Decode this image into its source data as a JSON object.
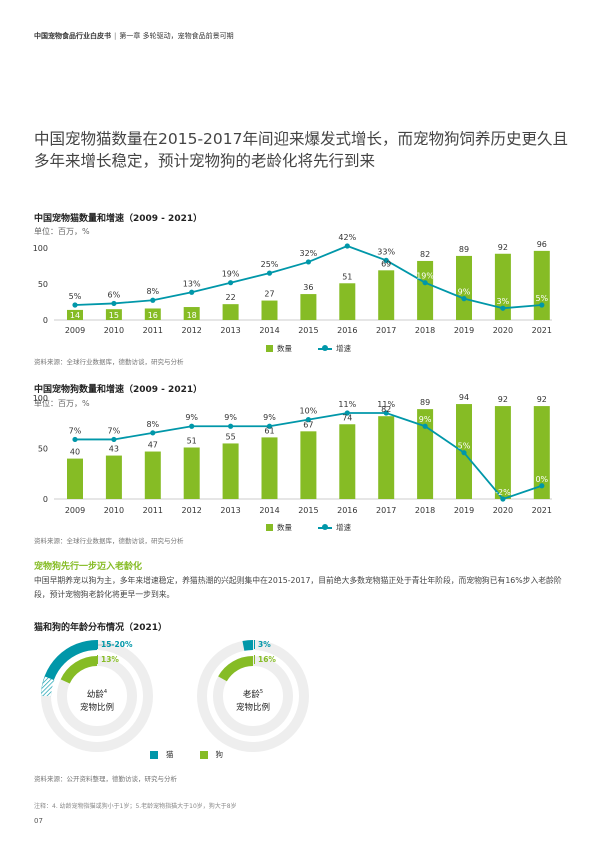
{
  "header": {
    "report": "中国宠物食品行业白皮书",
    "separator": "|",
    "chapter": "第一章 多轮驱动，宠物食品前景可期"
  },
  "headline": "中国宠物猫数量在2015-2017年间迎来爆发式增长，而宠物狗饲养历史更久且多年来增长稳定，预计宠物狗的老龄化将先行到来",
  "legend": {
    "bars": "数量",
    "line": "增速"
  },
  "chart_data": [
    {
      "type": "bar",
      "title": "中国宠物猫数量和增速（2009 - 2021）",
      "unit": "单位：百万，%",
      "categories": [
        "2009",
        "2010",
        "2011",
        "2012",
        "2013",
        "2014",
        "2015",
        "2016",
        "2017",
        "2018",
        "2019",
        "2020",
        "2021"
      ],
      "series": [
        {
          "name": "数量",
          "values": [
            14,
            15,
            16,
            18,
            22,
            27,
            36,
            51,
            69,
            82,
            89,
            92,
            96
          ]
        },
        {
          "name": "增速",
          "values": [
            "5%",
            "6%",
            "8%",
            "13%",
            "19%",
            "25%",
            "32%",
            "42%",
            "33%",
            "19%",
            "9%",
            "3%",
            "5%"
          ],
          "numeric": [
            5,
            6,
            8,
            13,
            19,
            25,
            32,
            42,
            33,
            19,
            9,
            3,
            5
          ]
        }
      ],
      "yticks": [
        "0",
        "50",
        "100"
      ],
      "ylim": [
        0,
        100
      ],
      "growth_range": [
        0,
        42
      ],
      "source": "资料来源：全球行业数据库，德勤访谈，研究与分析"
    },
    {
      "type": "bar",
      "title": "中国宠物狗数量和增速（2009 - 2021）",
      "unit": "单位：百万，%",
      "categories": [
        "2009",
        "2010",
        "2011",
        "2012",
        "2013",
        "2014",
        "2015",
        "2016",
        "2017",
        "2018",
        "2019",
        "2020",
        "2021"
      ],
      "series": [
        {
          "name": "数量",
          "values": [
            40,
            43,
            47,
            51,
            55,
            61,
            67,
            74,
            82,
            89,
            94,
            92,
            92
          ]
        },
        {
          "name": "增速",
          "values": [
            "7%",
            "7%",
            "8%",
            "9%",
            "9%",
            "9%",
            "10%",
            "11%",
            "11%",
            "9%",
            "5%",
            "-2%",
            "0%"
          ],
          "numeric": [
            7,
            7,
            8,
            9,
            9,
            9,
            10,
            11,
            11,
            9,
            5,
            -2,
            0
          ]
        }
      ],
      "yticks": [
        "0",
        "50",
        "100"
      ],
      "ylim": [
        0,
        100
      ],
      "growth_range": [
        -2,
        11
      ],
      "source": "资料来源：全球行业数据库，德勤访谈，研究与分析"
    }
  ],
  "section": {
    "title": "宠物狗先行一步迈入老龄化",
    "body": "中国早期养宠以狗为主，多年来增速稳定，养猫热潮的兴起则集中在2015-2017，目前绝大多数宠物猫正处于青壮年阶段，而宠物狗已有16%步入老龄阶段，预计宠物狗老龄化将更早一步到来。"
  },
  "age_chart": {
    "title": "猫和狗的年龄分布情况（2021）",
    "young": {
      "label_line1": "幼龄",
      "label_sup": "4",
      "label_line2": "宠物比例",
      "cat": "15-20%",
      "dog": "13%",
      "cat_value": 0.175,
      "dog_value": 0.13
    },
    "old": {
      "label_line1": "老龄",
      "label_sup": "5",
      "label_line2": "宠物比例",
      "cat": "3%",
      "dog": "16%",
      "cat_value": 0.03,
      "dog_value": 0.16
    },
    "legend": {
      "cat": "猫",
      "dog": "狗"
    },
    "source": "资料来源：公开资料整理，德勤访谈，研究与分析"
  },
  "footnote": "注释：4. 幼龄宠物指猫或狗小于1岁；5.老龄宠物指猫大于10岁，狗大于8岁",
  "page_number": "07",
  "colors": {
    "green": "#86bc25",
    "teal": "#0097a9",
    "ring": "#eeeeee"
  }
}
